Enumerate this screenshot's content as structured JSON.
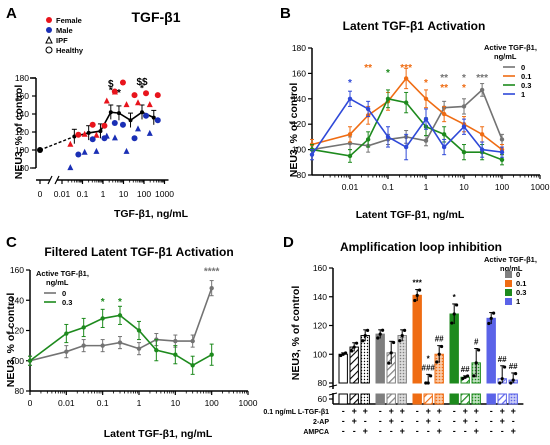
{
  "chart_data": [
    {
      "panel": "A",
      "type": "scatter",
      "title": "TGF-β1",
      "xlabel": "TGF-β1, ng/mL",
      "ylabel": "NEU3, % of control",
      "x_scale": "log",
      "xlim": [
        0.01,
        1000
      ],
      "ylim": [
        80,
        180
      ],
      "x_ticks": [
        "0",
        "0.01",
        "0.1",
        "1",
        "10",
        "100",
        "1000"
      ],
      "y_ticks": [
        "80",
        "100",
        "120",
        "140",
        "160",
        "180"
      ],
      "legend": [
        "Female",
        "Male",
        "IPF",
        "Healthy"
      ],
      "colors": {
        "female": "#e8141c",
        "male": "#1a2fb5",
        "line": "#000000"
      },
      "mean_line": {
        "x": [
          0,
          0.04,
          0.2,
          0.75,
          2.4,
          6,
          22,
          80,
          300
        ],
        "y": [
          100,
          115,
          119,
          121,
          142,
          141,
          133,
          142,
          136
        ]
      },
      "female_points": [
        {
          "x": 0.04,
          "y": 117
        },
        {
          "x": 0.2,
          "y": 128
        },
        {
          "x": 0.75,
          "y": 127
        },
        {
          "x": 2.4,
          "y": 165
        },
        {
          "x": 6,
          "y": 175
        },
        {
          "x": 22,
          "y": 161
        },
        {
          "x": 80,
          "y": 163
        },
        {
          "x": 300,
          "y": 161
        }
      ],
      "male_points": [
        {
          "x": 0.04,
          "y": 95
        },
        {
          "x": 0.2,
          "y": 112
        },
        {
          "x": 0.75,
          "y": 113
        },
        {
          "x": 2.4,
          "y": 130
        },
        {
          "x": 6,
          "y": 128
        },
        {
          "x": 22,
          "y": 113
        },
        {
          "x": 80,
          "y": 138
        },
        {
          "x": 300,
          "y": 133
        }
      ],
      "annotations": [
        {
          "x": 2.4,
          "y": 170,
          "label": "$"
        },
        {
          "x": 2.4,
          "y": 163,
          "label": "*"
        },
        {
          "x": 6,
          "y": 160,
          "label": "*"
        },
        {
          "x": 80,
          "y": 172,
          "label": "$$"
        },
        {
          "x": 80,
          "y": 165,
          "label": "*"
        }
      ]
    },
    {
      "panel": "B",
      "type": "line",
      "title": "Latent TGF-β1 Activation",
      "xlabel": "Latent TGF-β1, ng/mL",
      "ylabel": "NEU3, % of control",
      "x_scale": "log",
      "xlim": [
        0.001,
        1000
      ],
      "ylim": [
        80,
        180
      ],
      "x_ticks": [
        "0.01",
        "0.1",
        "1",
        "10",
        "100",
        "1000"
      ],
      "y_ticks": [
        "80",
        "100",
        "120",
        "140",
        "160",
        "180"
      ],
      "legend_title": "Active TGF-β1, ng/mL",
      "x": [
        0.001,
        0.01,
        0.03,
        0.1,
        0.3,
        1,
        3,
        10,
        30,
        100
      ],
      "series": [
        {
          "name": "0",
          "color": "#737373",
          "values": [
            100,
            105,
            103,
            108,
            110,
            107,
            133,
            134,
            147,
            108
          ],
          "err": [
            4,
            5,
            5,
            4,
            5,
            4,
            5,
            6,
            5,
            4
          ]
        },
        {
          "name": "0.1",
          "color": "#ef6c13",
          "values": [
            104,
            112,
            127,
            138,
            156,
            140,
            128,
            120,
            112,
            100
          ],
          "err": [
            4,
            6,
            7,
            7,
            8,
            7,
            6,
            6,
            6,
            4
          ]
        },
        {
          "name": "0.3",
          "color": "#1d8a1d",
          "values": [
            100,
            95,
            108,
            140,
            137,
            118,
            112,
            98,
            98,
            92
          ],
          "err": [
            4,
            5,
            6,
            7,
            8,
            7,
            6,
            6,
            6,
            4
          ]
        },
        {
          "name": "1",
          "color": "#2f49d8",
          "values": [
            96,
            140,
            132,
            110,
            102,
            124,
            102,
            118,
            100,
            98
          ],
          "err": [
            4,
            6,
            6,
            8,
            10,
            8,
            6,
            6,
            6,
            4
          ]
        }
      ],
      "annotations": [
        {
          "x": 0.01,
          "y": 150,
          "label": "*",
          "color": "#2f49d8"
        },
        {
          "x": 0.03,
          "y": 162,
          "label": "**",
          "color": "#ef6c13"
        },
        {
          "x": 0.1,
          "y": 158,
          "label": "*",
          "color": "#1d8a1d"
        },
        {
          "x": 0.3,
          "y": 162,
          "label": "***",
          "color": "#ef6c13"
        },
        {
          "x": 1,
          "y": 150,
          "label": "*",
          "color": "#ef6c13"
        },
        {
          "x": 3,
          "y": 154,
          "label": "**",
          "color": "#737373"
        },
        {
          "x": 3,
          "y": 146,
          "label": "**",
          "color": "#ef6c13"
        },
        {
          "x": 10,
          "y": 154,
          "label": "*",
          "color": "#737373"
        },
        {
          "x": 10,
          "y": 146,
          "label": "*",
          "color": "#ef6c13"
        },
        {
          "x": 30,
          "y": 154,
          "label": "***",
          "color": "#737373"
        }
      ]
    },
    {
      "panel": "C",
      "type": "line",
      "title": "Filtered Latent TGF-β1 Activation",
      "xlabel": "Latent TGF-β1, ng/mL",
      "ylabel": "NEU3, % of control",
      "x_scale": "log",
      "xlim": [
        0.001,
        1000
      ],
      "ylim": [
        80,
        160
      ],
      "x_ticks": [
        "0",
        "0.01",
        "0.1",
        "1",
        "10",
        "100",
        "1000"
      ],
      "y_ticks": [
        "80",
        "100",
        "120",
        "140",
        "160"
      ],
      "legend_title": "Active TGF-β1, ng/mL",
      "x": [
        0.001,
        0.01,
        0.03,
        0.1,
        0.3,
        1,
        3,
        10,
        30,
        100
      ],
      "series": [
        {
          "name": "0",
          "color": "#737373",
          "values": [
            100,
            106,
            110,
            110,
            112,
            108,
            114,
            113,
            113,
            148
          ],
          "err": [
            3,
            4,
            4,
            4,
            4,
            4,
            4,
            4,
            4,
            5
          ]
        },
        {
          "name": "0.3",
          "color": "#1d8a1d",
          "values": [
            100,
            118,
            122,
            128,
            130,
            120,
            107,
            104,
            97,
            104
          ],
          "err": [
            3,
            6,
            6,
            6,
            6,
            6,
            7,
            6,
            6,
            7
          ]
        }
      ],
      "annotations": [
        {
          "x": 0.1,
          "y": 137,
          "label": "*",
          "color": "#1d8a1d"
        },
        {
          "x": 0.3,
          "y": 137,
          "label": "*",
          "color": "#1d8a1d"
        },
        {
          "x": 100,
          "y": 157,
          "label": "****",
          "color": "#737373"
        }
      ]
    },
    {
      "panel": "D",
      "type": "bar",
      "title": "Amplification loop inhibition",
      "ylabel": "NEU3, % of control",
      "ylim": [
        60,
        160
      ],
      "y_ticks": [
        "60",
        "80",
        "100",
        "120",
        "140",
        "160"
      ],
      "axis_break": true,
      "legend_title": "Active TGF-β1, ng/mL",
      "legend": [
        {
          "name": "0",
          "color": "#7f7f7f"
        },
        {
          "name": "0.1",
          "color": "#ef6c13"
        },
        {
          "name": "0.3",
          "color": "#1d8a1d"
        },
        {
          "name": "1",
          "color": "#5b63e8"
        }
      ],
      "bars": [
        {
          "value": 100,
          "err": 1,
          "group": "none",
          "pattern": "solid"
        },
        {
          "value": 105,
          "err": 3,
          "group": "none",
          "pattern": "diag"
        },
        {
          "value": 113,
          "err": 4,
          "group": "none",
          "pattern": "dot"
        },
        {
          "value": 114,
          "err": 3,
          "group": "0",
          "pattern": "solid"
        },
        {
          "value": 101,
          "err": 8,
          "group": "0",
          "pattern": "diag"
        },
        {
          "value": 113,
          "err": 4,
          "group": "0",
          "pattern": "dot"
        },
        {
          "value": 141,
          "err": 4,
          "group": "0.1",
          "pattern": "solid"
        },
        {
          "value": 76,
          "err": 10,
          "group": "0.1",
          "pattern": "diag"
        },
        {
          "value": 100,
          "err": 6,
          "group": "0.1",
          "pattern": "dot"
        },
        {
          "value": 128,
          "err": 7,
          "group": "0.3",
          "pattern": "solid"
        },
        {
          "value": 84,
          "err": 1,
          "group": "0.3",
          "pattern": "diag"
        },
        {
          "value": 94,
          "err": 10,
          "group": "0.3",
          "pattern": "dot"
        },
        {
          "value": 125,
          "err": 4,
          "group": "1",
          "pattern": "solid"
        },
        {
          "value": 83,
          "err": 9,
          "group": "1",
          "pattern": "diag"
        },
        {
          "value": 82,
          "err": 5,
          "group": "1",
          "pattern": "dot"
        }
      ],
      "bar_annotations": [
        {
          "bar": 6,
          "label": "***"
        },
        {
          "bar": 7,
          "label": "###"
        },
        {
          "bar": 7,
          "label": "*"
        },
        {
          "bar": 8,
          "label": "##"
        },
        {
          "bar": 9,
          "label": "*"
        },
        {
          "bar": 10,
          "label": "##"
        },
        {
          "bar": 11,
          "label": "#"
        },
        {
          "bar": 13,
          "label": "##"
        },
        {
          "bar": 14,
          "label": "##"
        }
      ],
      "condition_rows": [
        {
          "label": "0.1 ng/mL L-TGF-β1",
          "signs": [
            "-",
            "+",
            "+",
            "-",
            "+",
            "+",
            "-",
            "+",
            "+",
            "-",
            "+",
            "+",
            "-",
            "+",
            "+"
          ]
        },
        {
          "label": "2-AP",
          "signs": [
            "-",
            "+",
            "-",
            "-",
            "+",
            "-",
            "-",
            "+",
            "-",
            "-",
            "+",
            "-",
            "-",
            "+",
            "-"
          ]
        },
        {
          "label": "AMPCA",
          "signs": [
            "-",
            "-",
            "+",
            "-",
            "-",
            "+",
            "-",
            "-",
            "+",
            "-",
            "-",
            "+",
            "-",
            "-",
            "+"
          ]
        }
      ]
    }
  ],
  "labels": {
    "panel_a": "A",
    "panel_b": "B",
    "panel_c": "C",
    "panel_d": "D",
    "a_title": "TGF-β1",
    "b_title": "Latent TGF-β1 Activation",
    "c_title": "Filtered Latent TGF-β1 Activation",
    "d_title": "Amplification loop inhibition",
    "a_xlabel": "TGF-β1, ng/mL",
    "b_xlabel": "Latent TGF-β1, ng/mL",
    "c_xlabel": "Latent TGF-β1, ng/mL",
    "ylabel": "NEU3, % of control",
    "legend_female": "Female",
    "legend_male": "Male",
    "legend_ipf": "IPF",
    "legend_healthy": "Healthy",
    "active_line1": "Active TGF-β1,",
    "active_line2": "ng/mL",
    "d_active_line1": "Active TGF-β1,",
    "d_active_line2": "ng/mL"
  }
}
